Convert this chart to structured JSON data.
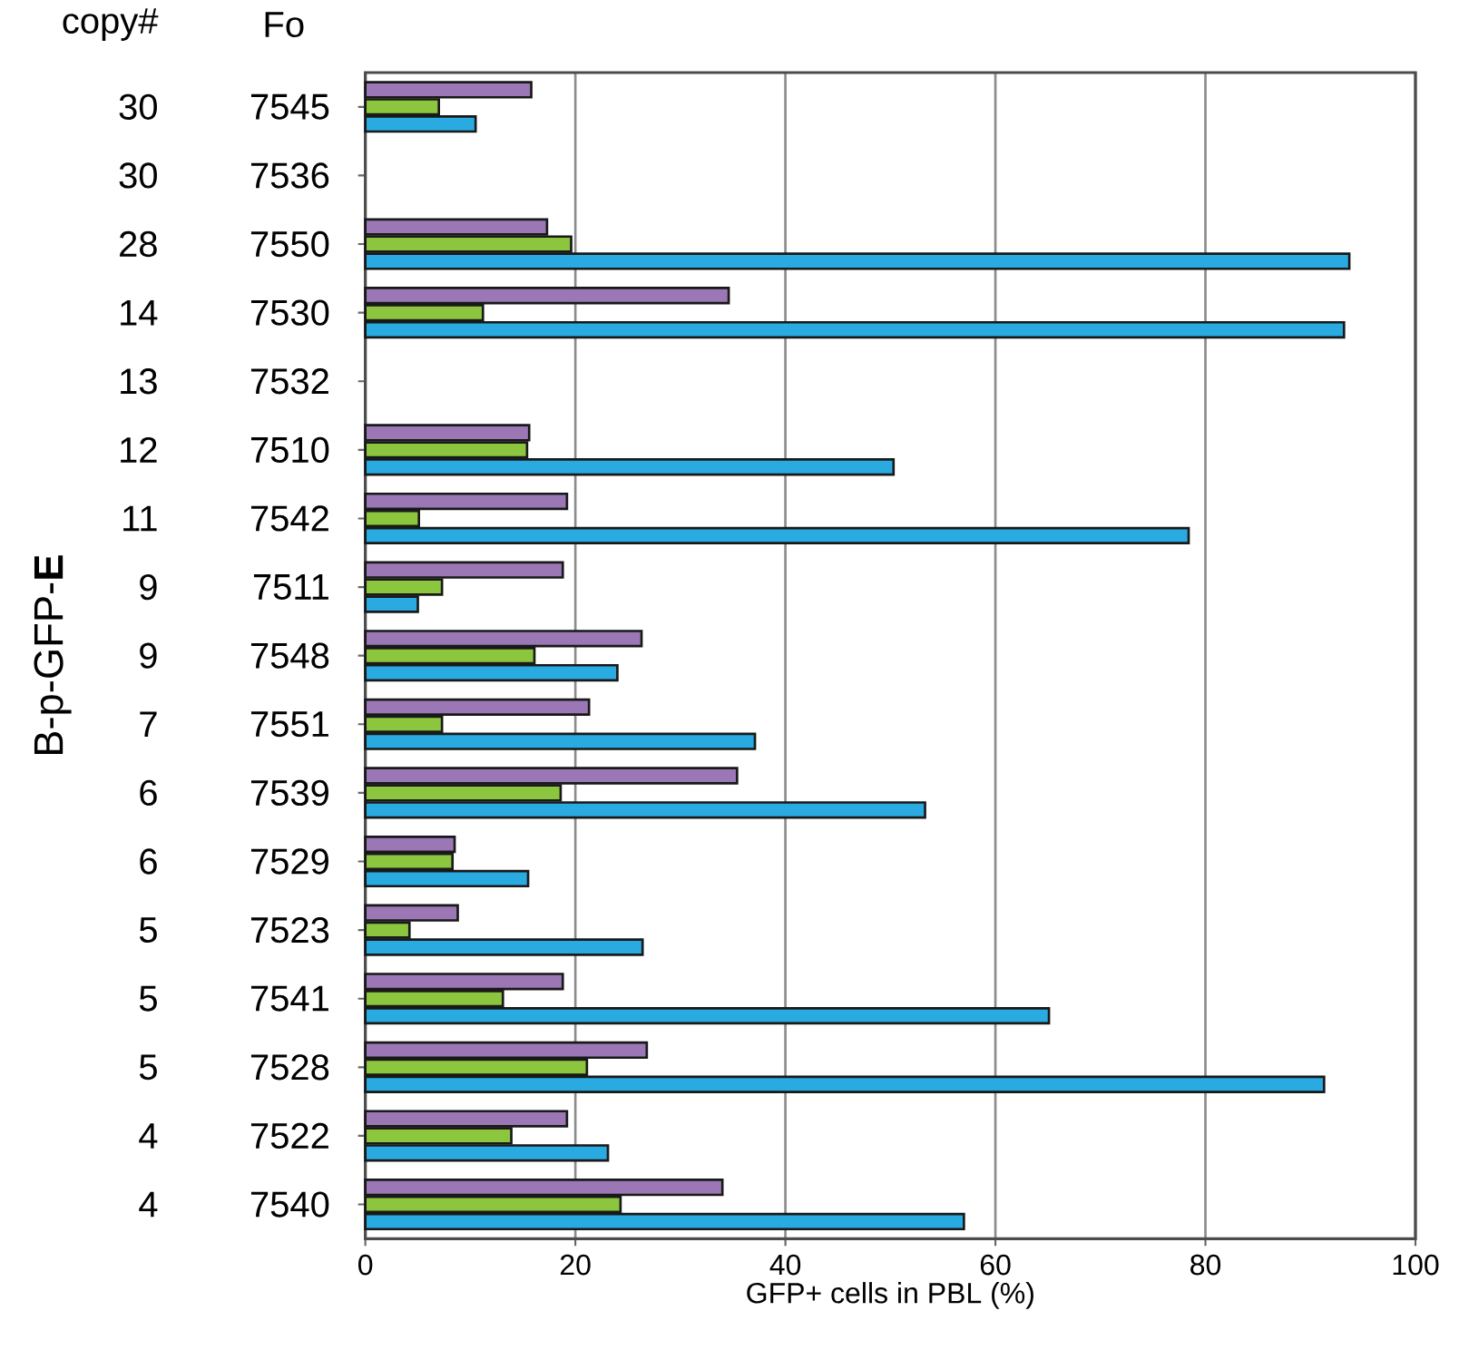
{
  "chart_data": {
    "type": "bar",
    "orientation": "horizontal",
    "xlabel": "GFP+ cells in PBL (%)",
    "ylabel": "B-p-GFP-**E**",
    "categories": [
      "7545",
      "7536",
      "7550",
      "7530",
      "7532",
      "7510",
      "7542",
      "7511",
      "7548",
      "7551",
      "7539",
      "7529",
      "7523",
      "7541",
      "7528",
      "7522",
      "7540"
    ],
    "series": [
      {
        "color": "#9b78b5",
        "values": [
          15.8,
          null,
          17.3,
          34.6,
          null,
          15.6,
          19.2,
          18.8,
          26.3,
          21.3,
          35.4,
          8.5,
          8.8,
          18.8,
          26.8,
          19.2,
          34.0
        ]
      },
      {
        "color": "#8cc63f",
        "values": [
          7.0,
          null,
          19.6,
          11.2,
          null,
          15.4,
          5.1,
          7.3,
          16.1,
          7.3,
          18.6,
          8.3,
          4.2,
          13.1,
          21.1,
          13.9,
          24.3
        ]
      },
      {
        "color": "#29abe2",
        "values": [
          10.5,
          null,
          93.7,
          93.2,
          null,
          50.3,
          78.4,
          5.0,
          24.0,
          37.1,
          53.3,
          15.5,
          26.4,
          65.1,
          91.3,
          23.1,
          57.0
        ]
      }
    ],
    "xlim": [
      0,
      100
    ],
    "xticks": [
      0,
      20,
      40,
      60,
      80,
      100
    ],
    "grid": "x",
    "annotations": [
      "copy#",
      "Fo",
      "30",
      "30",
      "28",
      "14",
      "13",
      "12",
      "11",
      "9",
      "9",
      "7",
      "6",
      "6",
      "5",
      "5",
      "5",
      "4",
      "4"
    ]
  }
}
